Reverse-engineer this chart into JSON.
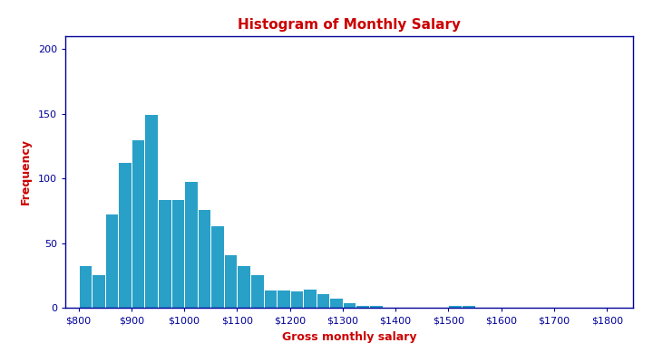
{
  "title": "Histogram of Monthly Salary",
  "xlabel": "Gross monthly salary",
  "ylabel": "Frequency",
  "title_color": "#cc0000",
  "label_color": "#cc0000",
  "bar_color": "#29a0c8",
  "bar_edge_color": "#ffffff",
  "axis_color": "#000099",
  "tick_color": "#000099",
  "bin_left": [
    800,
    825,
    850,
    875,
    900,
    925,
    950,
    975,
    1000,
    1025,
    1050,
    1075,
    1100,
    1125,
    1150,
    1175,
    1200,
    1225,
    1250,
    1275,
    1300,
    1325,
    1350,
    1375,
    1400,
    1425,
    1450,
    1475,
    1500,
    1525
  ],
  "frequencies": [
    33,
    26,
    73,
    113,
    130,
    150,
    84,
    84,
    98,
    76,
    64,
    41,
    33,
    26,
    14,
    14,
    13,
    15,
    11,
    8,
    4,
    2,
    2,
    1,
    1,
    0,
    0,
    0,
    2,
    2
  ],
  "bin_width": 25,
  "ylim": [
    0,
    210
  ],
  "yticks": [
    0,
    50,
    100,
    150,
    200
  ],
  "xticks": [
    800,
    900,
    1000,
    1100,
    1200,
    1300,
    1400,
    1500,
    1600,
    1700,
    1800
  ],
  "xlim": [
    775,
    1850
  ],
  "title_fontsize": 11,
  "label_fontsize": 9,
  "tick_fontsize": 8
}
